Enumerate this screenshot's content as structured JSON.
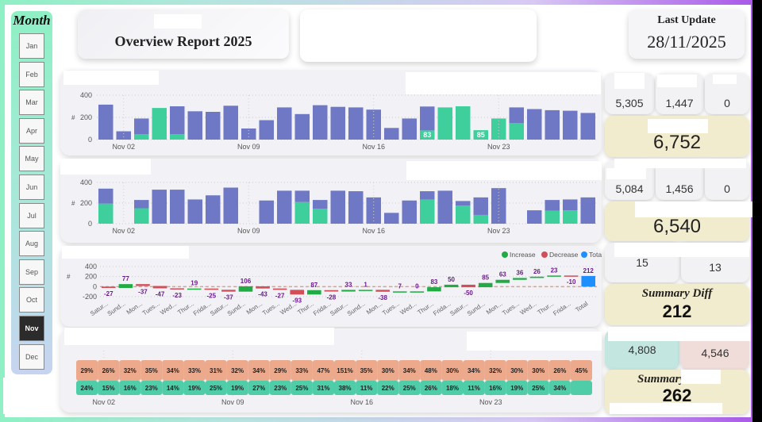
{
  "header": {
    "title": "Overview Report 2025",
    "last_update_label": "Last Update",
    "last_update_value": "28/11/2025"
  },
  "month_slicer": {
    "title": "Month",
    "months": [
      "Jan",
      "Feb",
      "Mar",
      "Apr",
      "May",
      "Jun",
      "Jul",
      "Aug",
      "Sep",
      "Oct",
      "Nov",
      "Dec"
    ],
    "selected": "Nov"
  },
  "colors": {
    "bar_primary": "#6f78c4",
    "bar_secondary": "#3ecf9c",
    "increase": "#22aa44",
    "decrease": "#d0505a",
    "total": "#1e8fff",
    "ribbon_top": "#eda98c",
    "ribbon_bottom": "#4fcca8",
    "label_purple": "#6a1b8a"
  },
  "kpis": {
    "row1": [
      "5,305",
      "1,447",
      "0"
    ],
    "total1": "6,752",
    "row2": [
      "5,084",
      "1,456",
      "0"
    ],
    "total2": "6,540",
    "row3": [
      "15",
      "13"
    ],
    "summary_diff_label": "Summary Diff",
    "summary_diff_value": "212",
    "row4": [
      "4,808",
      "4,546"
    ],
    "summary_label": "Summary",
    "summary_value": "262"
  },
  "chart_data": [
    {
      "type": "bar",
      "title": "",
      "stacked": true,
      "ylabel": "#",
      "ylim": [
        0,
        400
      ],
      "yticks": [
        "0",
        "200",
        "400"
      ],
      "xticks": [
        "Nov 02",
        "Nov 09",
        "Nov 16",
        "Nov 23"
      ],
      "categories": [
        "Nov 01",
        "Nov 02",
        "Nov 03",
        "Nov 04",
        "Nov 05",
        "Nov 06",
        "Nov 07",
        "Nov 08",
        "Nov 09",
        "Nov 10",
        "Nov 11",
        "Nov 12",
        "Nov 13",
        "Nov 14",
        "Nov 15",
        "Nov 16",
        "Nov 17",
        "Nov 18",
        "Nov 19",
        "Nov 20",
        "Nov 21",
        "Nov 22",
        "Nov 23",
        "Nov 24",
        "Nov 25",
        "Nov 26",
        "Nov 27",
        "Nov 28"
      ],
      "series": [
        {
          "name": "secondary",
          "values": [
            0,
            0,
            50,
            285,
            50,
            0,
            0,
            0,
            0,
            0,
            0,
            0,
            0,
            0,
            0,
            0,
            0,
            0,
            83,
            290,
            300,
            85,
            190,
            150,
            0,
            0,
            0,
            0
          ]
        },
        {
          "name": "primary",
          "values": [
            315,
            75,
            140,
            0,
            250,
            255,
            250,
            305,
            100,
            175,
            290,
            230,
            310,
            295,
            290,
            270,
            105,
            190,
            215,
            0,
            0,
            0,
            0,
            140,
            275,
            265,
            260,
            240
          ]
        }
      ],
      "data_labels": [
        {
          "index": 18,
          "text": "83"
        },
        {
          "index": 21,
          "text": "85"
        }
      ]
    },
    {
      "type": "bar",
      "title": "",
      "stacked": true,
      "ylabel": "#",
      "ylim": [
        0,
        400
      ],
      "yticks": [
        "0",
        "200",
        "400"
      ],
      "xticks": [
        "Nov 02",
        "Nov 09",
        "Nov 16",
        "Nov 23"
      ],
      "categories": [
        "Nov 01",
        "Nov 02",
        "Nov 03",
        "Nov 04",
        "Nov 05",
        "Nov 06",
        "Nov 07",
        "Nov 08",
        "Nov 09",
        "Nov 10",
        "Nov 11",
        "Nov 12",
        "Nov 13",
        "Nov 14",
        "Nov 15",
        "Nov 16",
        "Nov 17",
        "Nov 18",
        "Nov 19",
        "Nov 20",
        "Nov 21",
        "Nov 22",
        "Nov 23",
        "Nov 24",
        "Nov 25",
        "Nov 26",
        "Nov 27",
        "Nov 28"
      ],
      "series": [
        {
          "name": "secondary",
          "values": [
            195,
            0,
            150,
            0,
            0,
            0,
            0,
            0,
            0,
            0,
            0,
            210,
            145,
            0,
            0,
            0,
            0,
            0,
            235,
            0,
            175,
            85,
            0,
            0,
            0,
            125,
            130,
            0
          ]
        },
        {
          "name": "primary",
          "values": [
            145,
            0,
            80,
            330,
            330,
            235,
            275,
            350,
            0,
            225,
            320,
            110,
            85,
            320,
            315,
            255,
            105,
            225,
            80,
            320,
            45,
            170,
            345,
            0,
            130,
            105,
            105,
            255
          ]
        }
      ]
    },
    {
      "type": "waterfall",
      "ylabel": "#",
      "ylim": [
        -200,
        400
      ],
      "yticks": [
        "-200",
        "0",
        "200",
        "400"
      ],
      "legend": [
        "Increase",
        "Decrease",
        "Total"
      ],
      "legend_position": "top-right",
      "categories": [
        "Satur...",
        "Sund...",
        "Mon...",
        "Tues...",
        "Wed...",
        "Thur...",
        "Frida...",
        "Satur...",
        "Sund...",
        "Mon...",
        "Tues...",
        "Wed...",
        "Thur...",
        "Frida...",
        "Satur...",
        "Sund...",
        "Mon...",
        "Tues...",
        "Wed...",
        "Thur...",
        "Frida...",
        "Satur...",
        "Sund...",
        "Mon...",
        "Tues...",
        "Wed...",
        "Thur...",
        "Frida...",
        "Total"
      ],
      "values": [
        -27,
        77,
        -37,
        -47,
        -23,
        19,
        -25,
        -37,
        106,
        -43,
        -27,
        -93,
        87,
        -28,
        33,
        1,
        -38,
        7,
        0,
        83,
        50,
        -50,
        85,
        63,
        36,
        26,
        23,
        -10,
        212
      ]
    },
    {
      "type": "area",
      "subtype": "ribbon",
      "xticks": [
        "Nov 02",
        "Nov 09",
        "Nov 16",
        "Nov 23"
      ],
      "series": [
        {
          "name": "top",
          "labels": [
            "29%",
            "26%",
            "32%",
            "35%",
            "34%",
            "33%",
            "31%",
            "32%",
            "34%",
            "29%",
            "33%",
            "47%",
            "151%",
            "35%",
            "30%",
            "34%",
            "48%",
            "30%",
            "34%",
            "32%",
            "30%",
            "30%",
            "26%",
            "45%"
          ]
        },
        {
          "name": "bottom",
          "labels": [
            "24%",
            "15%",
            "16%",
            "23%",
            "14%",
            "19%",
            "25%",
            "19%",
            "27%",
            "23%",
            "25%",
            "31%",
            "38%",
            "11%",
            "22%",
            "25%",
            "26%",
            "18%",
            "11%",
            "16%",
            "19%",
            "25%",
            "34%"
          ]
        }
      ]
    }
  ]
}
